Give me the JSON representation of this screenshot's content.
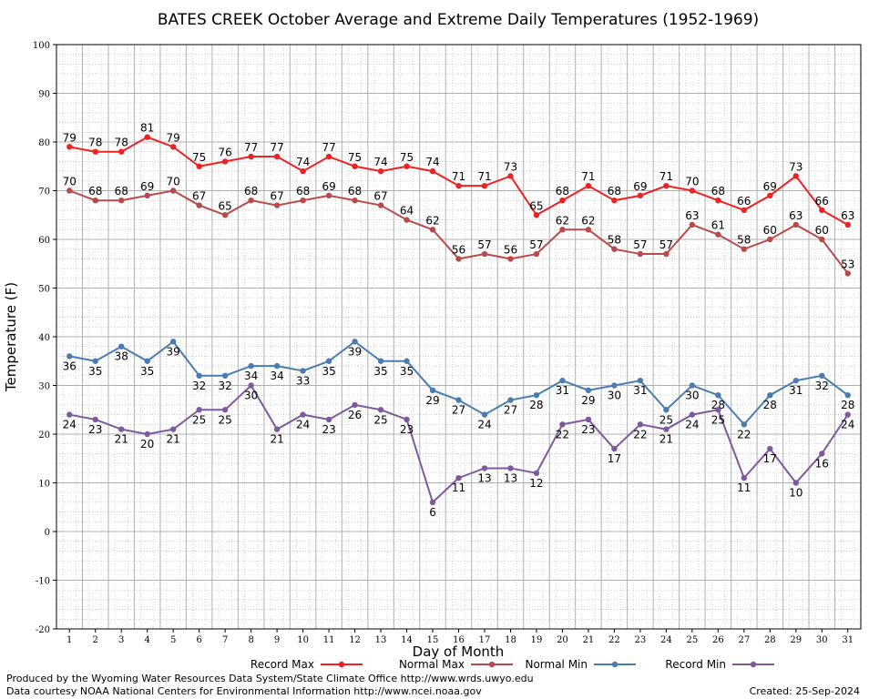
{
  "chart_data": {
    "type": "line",
    "title": "BATES CREEK October Average and Extreme Daily Temperatures (1952-1969)",
    "xlabel": "Day of Month",
    "ylabel": "Temperature (F)",
    "ylim": [
      -20,
      100
    ],
    "xlim": [
      0.5,
      31.5
    ],
    "grid": true,
    "legend_position": "bottom",
    "y_ticks": [
      -20,
      -10,
      0,
      10,
      20,
      30,
      40,
      50,
      60,
      70,
      80,
      90,
      100
    ],
    "x": [
      1,
      2,
      3,
      4,
      5,
      6,
      7,
      8,
      9,
      10,
      11,
      12,
      13,
      14,
      15,
      16,
      17,
      18,
      19,
      20,
      21,
      22,
      23,
      24,
      25,
      26,
      27,
      28,
      29,
      30,
      31
    ],
    "series": [
      {
        "name": "Record Max",
        "color": "#ee2222",
        "label_pos": "above",
        "values": [
          79,
          78,
          78,
          81,
          79,
          75,
          76,
          77,
          77,
          74,
          77,
          75,
          74,
          75,
          74,
          71,
          71,
          73,
          65,
          68,
          71,
          68,
          69,
          71,
          70,
          68,
          66,
          69,
          73,
          66,
          63
        ]
      },
      {
        "name": "Normal Max",
        "color": "#b84a4a",
        "label_pos": "above",
        "values": [
          70,
          68,
          68,
          69,
          70,
          67,
          65,
          68,
          67,
          68,
          69,
          68,
          67,
          64,
          62,
          56,
          57,
          56,
          57,
          62,
          62,
          58,
          57,
          57,
          63,
          61,
          58,
          60,
          63,
          60,
          53
        ]
      },
      {
        "name": "Normal Min",
        "color": "#4a7cb0",
        "label_pos": "below",
        "values": [
          36,
          35,
          38,
          35,
          39,
          32,
          32,
          34,
          34,
          33,
          35,
          39,
          35,
          35,
          29,
          27,
          24,
          27,
          28,
          31,
          29,
          30,
          31,
          25,
          30,
          28,
          22,
          28,
          31,
          32,
          28
        ]
      },
      {
        "name": "Record Min",
        "color": "#7d5a9e",
        "label_pos": "below",
        "values": [
          24,
          23,
          21,
          20,
          21,
          25,
          25,
          30,
          21,
          24,
          23,
          26,
          25,
          23,
          6,
          11,
          13,
          13,
          12,
          22,
          23,
          17,
          22,
          21,
          24,
          25,
          11,
          17,
          10,
          16,
          24
        ]
      }
    ]
  },
  "footer": {
    "line1": "Produced by the Wyoming Water Resources Data System/State Climate Office http://www.wrds.uwyo.edu",
    "line2": "Data courtesy NOAA National Centers for Environmental Information http://www.ncei.noaa.gov",
    "created": "Created:  25-Sep-2024"
  }
}
